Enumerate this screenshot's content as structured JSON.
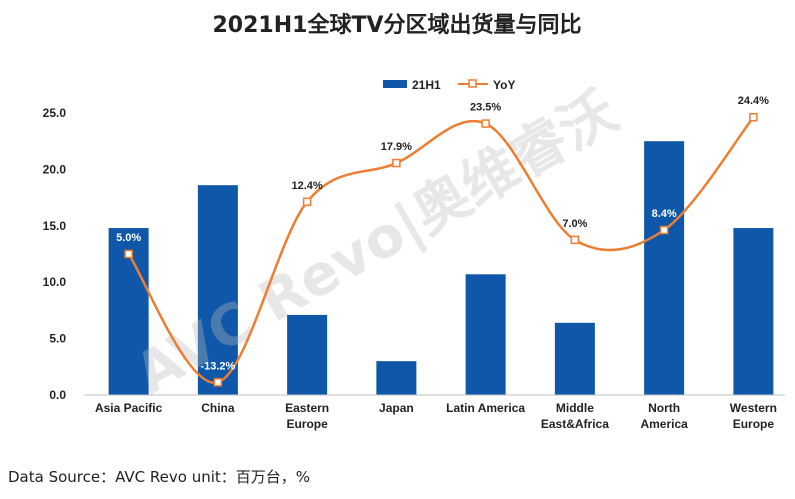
{
  "chart_data": {
    "type": "bar+line",
    "title": "2021H1全球TV分区域出货量与同比",
    "categories": [
      [
        "Asia Pacific"
      ],
      [
        "China"
      ],
      [
        "Eastern",
        "Europe"
      ],
      [
        "Japan"
      ],
      [
        "Latin America"
      ],
      [
        "Middle",
        "East&Africa"
      ],
      [
        "North",
        "America"
      ],
      [
        "Western",
        "Europe"
      ]
    ],
    "series": [
      {
        "name": "21H1",
        "type": "bar",
        "color": "#0f57a8",
        "values": [
          14.8,
          18.6,
          7.1,
          3.0,
          10.7,
          6.4,
          22.5,
          14.8
        ]
      },
      {
        "name": "YoY",
        "type": "line",
        "color": "#ed7d31",
        "axis": "secondary",
        "values": [
          5.0,
          -13.2,
          12.4,
          17.9,
          23.5,
          7.0,
          8.4,
          24.4
        ],
        "labels": [
          "5.0%",
          "-13.2%",
          "12.4%",
          "17.9%",
          "23.5%",
          "7.0%",
          "8.4%",
          "24.4%"
        ]
      }
    ],
    "y_ticks": [
      "0.0",
      "5.0",
      "10.0",
      "15.0",
      "20.0",
      "25.0"
    ],
    "ylim": [
      0,
      25
    ],
    "y2lim_assumed": [
      -15,
      25
    ],
    "legend": "top-center",
    "grid": false
  },
  "watermark": "AVC Revo|奥维睿沃",
  "footer": {
    "source": "Data Source：AVC Revo  unit：百万台，%"
  }
}
